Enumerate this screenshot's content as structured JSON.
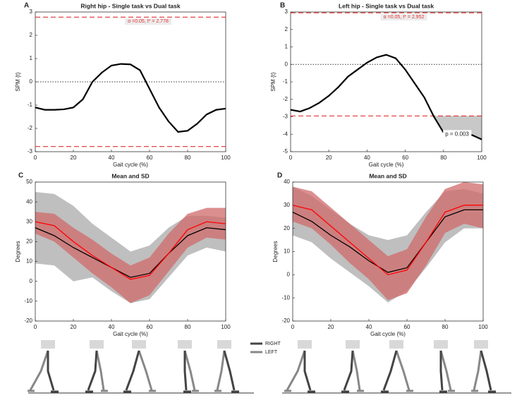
{
  "chart_data": [
    {
      "type": "line",
      "panel_label": "A",
      "title": "Right hip - Single task vs Dual task",
      "x_label": "Gait cycle (%)",
      "y_label": "SPM {t}",
      "xlim": [
        0,
        100
      ],
      "xticks": [
        0,
        20,
        40,
        60,
        80,
        100
      ],
      "ylim": [
        -3,
        3
      ],
      "yticks": [
        -3,
        -2,
        -1,
        0,
        1,
        2,
        3
      ],
      "x": [
        0,
        5,
        10,
        15,
        20,
        25,
        30,
        35,
        40,
        45,
        50,
        55,
        60,
        65,
        70,
        75,
        80,
        85,
        90,
        95,
        100
      ],
      "series": [
        {
          "color": "#000000",
          "values": [
            -1.1,
            -1.2,
            -1.2,
            -1.18,
            -1.1,
            -0.75,
            0.0,
            0.4,
            0.7,
            0.77,
            0.75,
            0.5,
            -0.3,
            -1.1,
            -1.7,
            -2.15,
            -2.1,
            -1.8,
            -1.4,
            -1.2,
            -1.15
          ]
        }
      ],
      "threshold_lines": [
        2.778,
        -2.778
      ],
      "threshold_color": "#e03030",
      "threshold_label": "α =0.05,    t* = 2.778",
      "reference_line": 0
    },
    {
      "type": "line",
      "panel_label": "B",
      "title": "Left hip - Single task vs Dual task",
      "x_label": "Gait cycle (%)",
      "y_label": "SPM {t}",
      "xlim": [
        0,
        100
      ],
      "xticks": [
        0,
        20,
        40,
        60,
        80,
        100
      ],
      "ylim": [
        -5,
        3
      ],
      "yticks": [
        -5,
        -4,
        -3,
        -2,
        -1,
        0,
        1,
        2,
        3
      ],
      "x": [
        0,
        5,
        10,
        15,
        20,
        25,
        30,
        35,
        40,
        45,
        50,
        55,
        60,
        65,
        70,
        75,
        80,
        85,
        90,
        95,
        100
      ],
      "series": [
        {
          "color": "#000000",
          "values": [
            -2.6,
            -2.7,
            -2.5,
            -2.2,
            -1.8,
            -1.3,
            -0.7,
            -0.3,
            0.1,
            0.4,
            0.55,
            0.35,
            -0.3,
            -1.1,
            -1.9,
            -3.0,
            -3.9,
            -4.1,
            -4.05,
            -4.05,
            -4.3
          ]
        }
      ],
      "threshold_lines": [
        2.952,
        -2.952
      ],
      "threshold_color": "#e03030",
      "threshold_label": "α =0.05,    t* = 2.952",
      "reference_line": 0,
      "cluster_label": "p = 0.003"
    },
    {
      "type": "line",
      "panel_label": "C",
      "title": "Mean and SD",
      "x_label": "Gait cycle (%)",
      "y_label": "Degrees",
      "xlim": [
        0,
        100
      ],
      "xticks": [
        0,
        20,
        40,
        60,
        80,
        100
      ],
      "ylim": [
        -20,
        50
      ],
      "yticks": [
        -20,
        -10,
        0,
        10,
        20,
        30,
        40,
        50
      ],
      "x": [
        0,
        10,
        20,
        30,
        40,
        50,
        60,
        70,
        80,
        90,
        100
      ],
      "series": [
        {
          "color": "#000000",
          "band_color": "#b4b4b4",
          "values": [
            27,
            23,
            17,
            12,
            7,
            2,
            4,
            14,
            23,
            27,
            26
          ],
          "band": {
            "lower": [
              9,
              8,
              0,
              2,
              -5,
              -11,
              -9,
              2,
              13,
              17,
              15
            ],
            "upper": [
              45,
              44,
              38,
              29,
              22,
              15,
              18,
              27,
              33,
              33,
              32
            ]
          }
        },
        {
          "color": "#ff0000",
          "band_color": "#d06a6a",
          "values": [
            30,
            28,
            20,
            13,
            7,
            1,
            3,
            14,
            26,
            30,
            29
          ],
          "band": {
            "lower": [
              24,
              20,
              12,
              4,
              -3,
              -11,
              -7,
              5,
              17,
              22,
              21
            ],
            "upper": [
              35,
              34,
              27,
              21,
              14,
              8,
              12,
              24,
              34,
              37,
              37
            ]
          }
        }
      ]
    },
    {
      "type": "line",
      "panel_label": "D",
      "title": "Mean and SD",
      "x_label": "Gait cycle (%)",
      "y_label": "Degrees",
      "xlim": [
        0,
        100
      ],
      "xticks": [
        0,
        20,
        40,
        60,
        80,
        100
      ],
      "ylim": [
        -20,
        40
      ],
      "yticks": [
        -20,
        -10,
        0,
        10,
        20,
        30,
        40
      ],
      "x": [
        0,
        10,
        20,
        30,
        40,
        50,
        60,
        70,
        80,
        90,
        100
      ],
      "series": [
        {
          "color": "#000000",
          "band_color": "#b4b4b4",
          "values": [
            27,
            23,
            17,
            12,
            6,
            1,
            3,
            14,
            25,
            28,
            28
          ],
          "band": {
            "lower": [
              17,
              14,
              7,
              1,
              -5,
              -12,
              -7,
              3,
              14,
              20,
              20
            ],
            "upper": [
              38,
              34,
              28,
              22,
              17,
              15,
              17,
              27,
              36,
              37,
              35
            ]
          }
        },
        {
          "color": "#ff0000",
          "band_color": "#d06a6a",
          "values": [
            30,
            28,
            21,
            14,
            7,
            0,
            2,
            14,
            27,
            30,
            30
          ],
          "band": {
            "lower": [
              23,
              20,
              13,
              5,
              -2,
              -11,
              -8,
              4,
              18,
              22,
              20
            ],
            "upper": [
              38,
              36,
              29,
              22,
              15,
              8,
              11,
              25,
              37,
              40,
              39
            ]
          }
        }
      ]
    }
  ],
  "stick_legend": [
    {
      "label": "RIGHT",
      "color": "#444444"
    },
    {
      "label": "LEFT",
      "color": "#888888"
    }
  ]
}
